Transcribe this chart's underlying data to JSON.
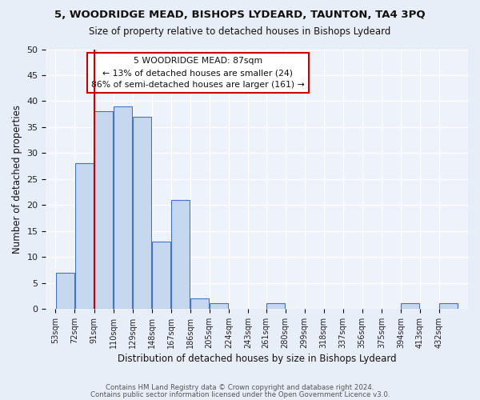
{
  "title1": "5, WOODRIDGE MEAD, BISHOPS LYDEARD, TAUNTON, TA4 3PQ",
  "title2": "Size of property relative to detached houses in Bishops Lydeard",
  "xlabel": "Distribution of detached houses by size in Bishops Lydeard",
  "ylabel": "Number of detached properties",
  "bin_labels": [
    "53sqm",
    "72sqm",
    "91sqm",
    "110sqm",
    "129sqm",
    "148sqm",
    "167sqm",
    "186sqm",
    "205sqm",
    "224sqm",
    "243sqm",
    "261sqm",
    "280sqm",
    "299sqm",
    "318sqm",
    "337sqm",
    "356sqm",
    "375sqm",
    "394sqm",
    "413sqm",
    "432sqm"
  ],
  "bar_values": [
    7,
    28,
    38,
    39,
    37,
    13,
    21,
    2,
    1,
    0,
    0,
    1,
    0,
    0,
    0,
    0,
    0,
    0,
    1,
    0,
    1
  ],
  "bar_color": "#c5d8f0",
  "bar_edge_color": "#4472c4",
  "ylim": [
    0,
    50
  ],
  "yticks": [
    0,
    5,
    10,
    15,
    20,
    25,
    30,
    35,
    40,
    45,
    50
  ],
  "vline_x": 91,
  "vline_color": "#cc0000",
  "annotation_text": "5 WOODRIDGE MEAD: 87sqm\n← 13% of detached houses are smaller (24)\n86% of semi-detached houses are larger (161) →",
  "annotation_box_color": "#ffffff",
  "annotation_box_edge": "#cc0000",
  "footer1": "Contains HM Land Registry data © Crown copyright and database right 2024.",
  "footer2": "Contains public sector information licensed under the Open Government Licence v3.0.",
  "bg_color": "#e8eef8",
  "plot_bg_color": "#eef2fa",
  "grid_color": "#ffffff",
  "bin_starts": [
    53,
    72,
    91,
    110,
    129,
    148,
    167,
    186,
    205,
    224,
    243,
    261,
    280,
    299,
    318,
    337,
    356,
    375,
    394,
    413,
    432
  ],
  "bin_width": 19
}
